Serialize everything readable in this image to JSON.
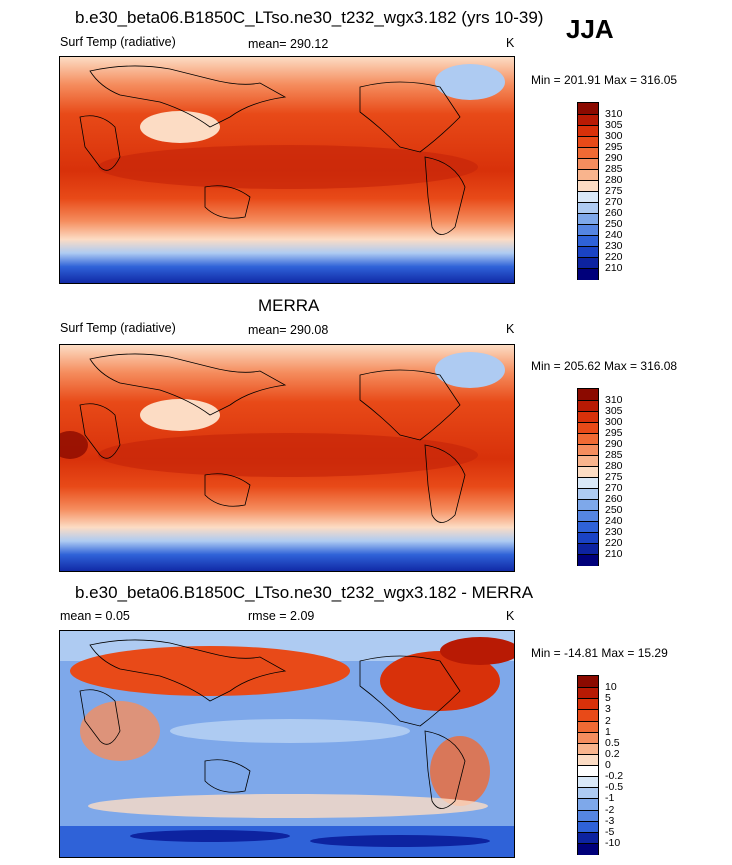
{
  "season": "JJA",
  "panels": [
    {
      "title": "b.e30_beta06.B1850C_LTso.ne30_t232_wgx3.182 (yrs 10-39)",
      "left_label": "Surf Temp (radiative)",
      "center_label": "mean= 290.12",
      "units": "K",
      "minmax": "Min = 201.91 Max = 316.05",
      "colorbar_labels": [
        "310",
        "305",
        "300",
        "295",
        "290",
        "285",
        "280",
        "275",
        "270",
        "260",
        "250",
        "240",
        "230",
        "220",
        "210"
      ],
      "colorbar_colors": [
        "#8b0a00",
        "#b81a04",
        "#d8310a",
        "#e84a18",
        "#f06a34",
        "#f58d5e",
        "#f9b48d",
        "#fcdcc4",
        "#d9e8f8",
        "#aecbf2",
        "#7ea8ea",
        "#5585e2",
        "#2f62d8",
        "#1a43c4",
        "#0d23a0",
        "#00007a"
      ]
    },
    {
      "title": "MERRA",
      "left_label": "Surf Temp (radiative)",
      "center_label": "mean= 290.08",
      "units": "K",
      "minmax": "Min = 205.62 Max = 316.08",
      "colorbar_labels": [
        "310",
        "305",
        "300",
        "295",
        "290",
        "285",
        "280",
        "275",
        "270",
        "260",
        "250",
        "240",
        "230",
        "220",
        "210"
      ],
      "colorbar_colors": [
        "#8b0a00",
        "#b81a04",
        "#d8310a",
        "#e84a18",
        "#f06a34",
        "#f58d5e",
        "#f9b48d",
        "#fcdcc4",
        "#d9e8f8",
        "#aecbf2",
        "#7ea8ea",
        "#5585e2",
        "#2f62d8",
        "#1a43c4",
        "#0d23a0",
        "#00007a"
      ]
    },
    {
      "title": "b.e30_beta06.B1850C_LTso.ne30_t232_wgx3.182 - MERRA",
      "left_label": "mean =   0.05",
      "center_label": "rmse =   2.09",
      "units": "K",
      "minmax": "Min = -14.81 Max =  15.29",
      "colorbar_labels": [
        "10",
        "5",
        "3",
        "2",
        "1",
        "0.5",
        "0.2",
        "0",
        "-0.2",
        "-0.5",
        "-1",
        "-2",
        "-3",
        "-5",
        "-10"
      ],
      "colorbar_colors": [
        "#8b0a00",
        "#b81a04",
        "#d8310a",
        "#e84a18",
        "#f06a34",
        "#f58d5e",
        "#f9b48d",
        "#fcdcc4",
        "#ffffff",
        "#d9e8f8",
        "#aecbf2",
        "#7ea8ea",
        "#5585e2",
        "#2f62d8",
        "#0d23a0",
        "#00007a"
      ]
    }
  ]
}
